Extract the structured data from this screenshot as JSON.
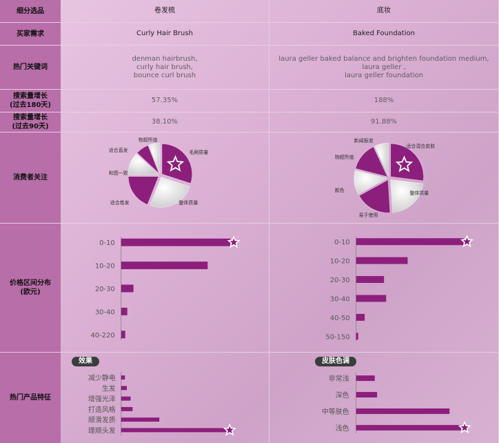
{
  "header": {
    "label": "细分选品",
    "col1": "卷发梳",
    "col2": "底妆"
  },
  "rows": {
    "demand": {
      "label": "买家需求",
      "col1": "Curly Hair Brush",
      "col2": "Baked Foundation"
    },
    "keywords": {
      "label": "热门关键词",
      "col1": [
        "denman hairbrush,",
        "curly hair brush,",
        "bounce curl brush"
      ],
      "col2": [
        "laura geller baked balance and brighten foundation medium,",
        "laura geller ,",
        "laura geller foundation"
      ]
    },
    "growth180": {
      "label_l1": "搜索量增长",
      "label_l2": "(过去180天)",
      "col1": "57.35%",
      "col2": "188%"
    },
    "growth90": {
      "label_l1": "搜索量增长",
      "label_l2": "(过去90天)",
      "col1": "38.10%",
      "col2": "91.88%"
    },
    "concerns": {
      "label": "消费者关注"
    },
    "price": {
      "label_l1": "价格区间分布",
      "label_l2": "(欧元)"
    },
    "features": {
      "label": "热门产品特征",
      "col1_pill": "效果",
      "col2_pill": "皮肤色调"
    }
  },
  "colors": {
    "accent": "#8c1f7c",
    "label_bg": "#b86ea8"
  },
  "chart_data": [
    {
      "type": "pie",
      "id": "concerns-hairbrush",
      "slices": [
        {
          "label": "毛刷质量",
          "value": 30,
          "style": "purple",
          "starred": true
        },
        {
          "label": "整体质量",
          "value": 26,
          "style": "grey"
        },
        {
          "label": "适合卷发",
          "value": 19,
          "style": "purple"
        },
        {
          "label": "和图一致",
          "value": 12,
          "style": "grey"
        },
        {
          "label": "适合直发",
          "value": 7,
          "style": "purple"
        },
        {
          "label": "物超所值",
          "value": 6,
          "style": "grey"
        }
      ]
    },
    {
      "type": "pie",
      "id": "concerns-foundation",
      "slices": [
        {
          "label": "适合混合皮肤",
          "value": 27,
          "style": "purple",
          "starred": true
        },
        {
          "label": "整体质量",
          "value": 22,
          "style": "grey"
        },
        {
          "label": "易于使用",
          "value": 18,
          "style": "purple"
        },
        {
          "label": "颜色",
          "value": 12,
          "style": "grey"
        },
        {
          "label": "物超所值",
          "value": 14,
          "style": "purple"
        },
        {
          "label": "新闻报道",
          "value": 7,
          "style": "grey"
        }
      ]
    },
    {
      "type": "bar",
      "orientation": "horizontal",
      "id": "price-hairbrush",
      "categories": [
        "0-10",
        "10-20",
        "20-30",
        "30-40",
        "40-220"
      ],
      "values": [
        53,
        42,
        6,
        3,
        2
      ],
      "xlim": [
        0,
        55
      ],
      "starred_index": 0
    },
    {
      "type": "bar",
      "orientation": "horizontal",
      "id": "price-foundation",
      "categories": [
        "0-10",
        "10-20",
        "20-30",
        "30-40",
        "40-50",
        "50-150"
      ],
      "values": [
        50,
        24,
        13,
        14,
        4,
        1
      ],
      "xlim": [
        0,
        55
      ],
      "starred_index": 0
    },
    {
      "type": "bar",
      "orientation": "horizontal",
      "id": "features-hairbrush",
      "categories": [
        "减少静电",
        "生发",
        "增强光泽",
        "打造风格",
        "顺滑发质",
        "理顺头发"
      ],
      "values": [
        2,
        3,
        5,
        6,
        20,
        55
      ],
      "xlim": [
        0,
        60
      ],
      "starred_index": 5
    },
    {
      "type": "bar",
      "orientation": "horizontal",
      "id": "features-foundation",
      "categories": [
        "非常浅",
        "深色",
        "中等肤色",
        "浅色"
      ],
      "values": [
        8,
        9,
        40,
        45
      ],
      "xlim": [
        0,
        50
      ],
      "starred_index": 3
    }
  ]
}
